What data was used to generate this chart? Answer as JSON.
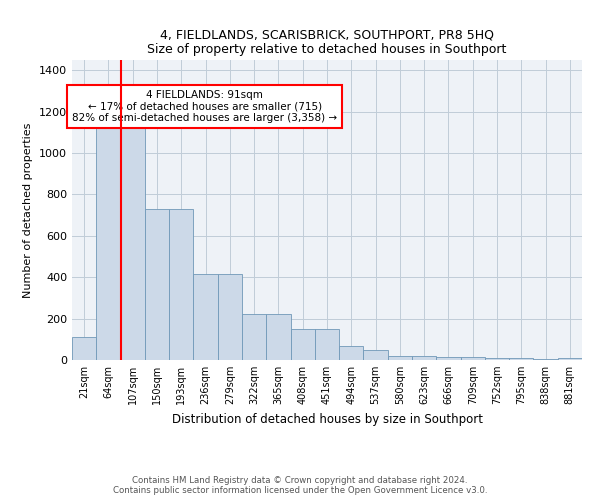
{
  "title": "4, FIELDLANDS, SCARISBRICK, SOUTHPORT, PR8 5HQ",
  "subtitle": "Size of property relative to detached houses in Southport",
  "xlabel": "Distribution of detached houses by size in Southport",
  "ylabel": "Number of detached properties",
  "categories": [
    "21sqm",
    "64sqm",
    "107sqm",
    "150sqm",
    "193sqm",
    "236sqm",
    "279sqm",
    "322sqm",
    "365sqm",
    "408sqm",
    "451sqm",
    "494sqm",
    "537sqm",
    "580sqm",
    "623sqm",
    "666sqm",
    "709sqm",
    "752sqm",
    "795sqm",
    "838sqm",
    "881sqm"
  ],
  "values": [
    110,
    1150,
    1160,
    730,
    730,
    415,
    415,
    220,
    220,
    150,
    150,
    70,
    50,
    20,
    20,
    15,
    15,
    10,
    10,
    5,
    12
  ],
  "bar_color": "#ccd9e8",
  "bar_edge_color": "#7098b8",
  "vline_x": 1.5,
  "vline_color": "red",
  "annotation_text": "4 FIELDLANDS: 91sqm\n← 17% of detached houses are smaller (715)\n82% of semi-detached houses are larger (3,358) →",
  "annotation_box_color": "white",
  "annotation_box_edge": "red",
  "ylim": [
    0,
    1450
  ],
  "yticks": [
    0,
    200,
    400,
    600,
    800,
    1000,
    1200,
    1400
  ],
  "footer1": "Contains HM Land Registry data © Crown copyright and database right 2024.",
  "footer2": "Contains public sector information licensed under the Open Government Licence v3.0.",
  "bg_color": "#eef2f7",
  "grid_color": "#c0ccd8"
}
